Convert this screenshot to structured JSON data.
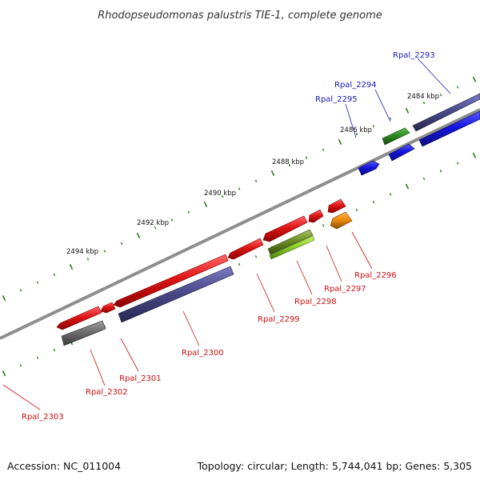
{
  "title": "Rhodopseudomonas palustris TIE-1, complete genome",
  "footer": {
    "accession": "Accession: NC_011004",
    "summary": "Topology: circular; Length: 5,744,041 bp; Genes: 5,305"
  },
  "scale_labels": [
    "2484 kbp",
    "2486 kbp",
    "2488 kbp",
    "2490 kbp",
    "2492 kbp",
    "2494 kbp"
  ],
  "colors": {
    "backbone": "#8e8e8e",
    "tick": "#2a7a1e",
    "forward_label": "#1a1ab4",
    "reverse_label": "#cc1111"
  },
  "genes": [
    {
      "id": "Rpal_2293",
      "strand": "forward",
      "track": "outer",
      "color": "#4a4a8c"
    },
    {
      "id": "Rpal_2294",
      "strand": "forward",
      "track": "outer",
      "color": "#2e8b22"
    },
    {
      "id": "Rpal_2295",
      "strand": "forward",
      "track": "inner",
      "color": "#1515d8"
    },
    {
      "id": "Rpal_2296",
      "strand": "reverse",
      "track": "inner",
      "color": "#f08c0c"
    },
    {
      "id": "Rpal_2297",
      "strand": "reverse",
      "track": "outer",
      "color": "#e01515"
    },
    {
      "id": "Rpal_2298",
      "strand": "reverse",
      "track": "inner",
      "color": "#8fd22a"
    },
    {
      "id": "Rpal_2299",
      "strand": "reverse",
      "track": "outer",
      "color": "#e01515"
    },
    {
      "id": "Rpal_2300",
      "strand": "reverse",
      "track": "outer",
      "color": "#e01515"
    },
    {
      "id": "Rpal_2301",
      "strand": "reverse",
      "track": "outer",
      "color": "#e01515"
    },
    {
      "id": "Rpal_2302",
      "strand": "reverse",
      "track": "outer",
      "color": "#e01515"
    },
    {
      "id": "Rpal_2303",
      "strand": "reverse",
      "track": "outer",
      "color": "#e01515"
    }
  ],
  "analysis_features": [
    {
      "gene": "Rpal_2293",
      "color": "#1515d8"
    },
    {
      "gene": "Rpal_2294",
      "color": "#1515d8"
    },
    {
      "gene": "Rpal_2300",
      "color": "#4a4a8c"
    },
    {
      "gene": "Rpal_2302",
      "color": "#6e6e6e"
    }
  ]
}
